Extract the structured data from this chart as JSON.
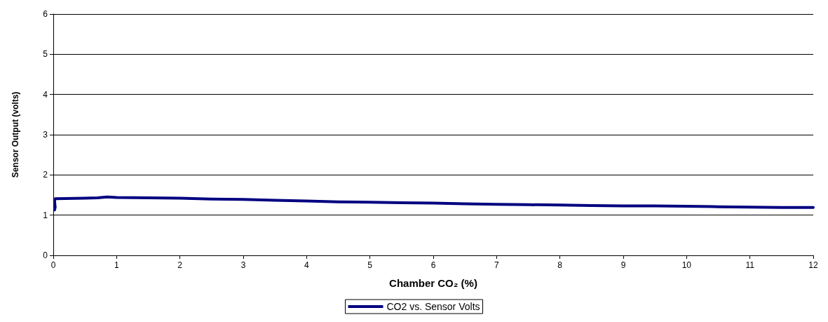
{
  "chart_data": {
    "type": "line",
    "xlabel": "Chamber CO₂ (%)",
    "ylabel": "Sensor Output (volts)",
    "xlim": [
      0,
      12
    ],
    "xticks": [
      0,
      1,
      2,
      3,
      4,
      5,
      6,
      7,
      8,
      9,
      10,
      11,
      12
    ],
    "ylim": [
      0,
      6
    ],
    "yticks": [
      0,
      1,
      2,
      3,
      4,
      5,
      6
    ],
    "grid": "y",
    "legend": "bottom",
    "marker": "none",
    "line_style": "solid",
    "series": [
      {
        "name": "CO2 vs. Sensor Volts",
        "color": "#000080",
        "x": [
          0.02,
          0.03,
          0.02,
          0.03,
          0.5,
          0.7,
          0.85,
          1.0,
          1.5,
          2,
          2.5,
          3,
          3.5,
          4,
          4.5,
          5,
          5.5,
          6,
          6.5,
          7,
          7.5,
          8,
          8.5,
          9,
          9.5,
          10,
          10.5,
          11,
          11.5,
          12
        ],
        "values": [
          1.13,
          1.2,
          1.35,
          1.41,
          1.42,
          1.43,
          1.45,
          1.44,
          1.43,
          1.42,
          1.4,
          1.39,
          1.37,
          1.35,
          1.33,
          1.32,
          1.31,
          1.3,
          1.28,
          1.27,
          1.26,
          1.25,
          1.24,
          1.23,
          1.23,
          1.22,
          1.21,
          1.2,
          1.19,
          1.19
        ]
      }
    ]
  }
}
